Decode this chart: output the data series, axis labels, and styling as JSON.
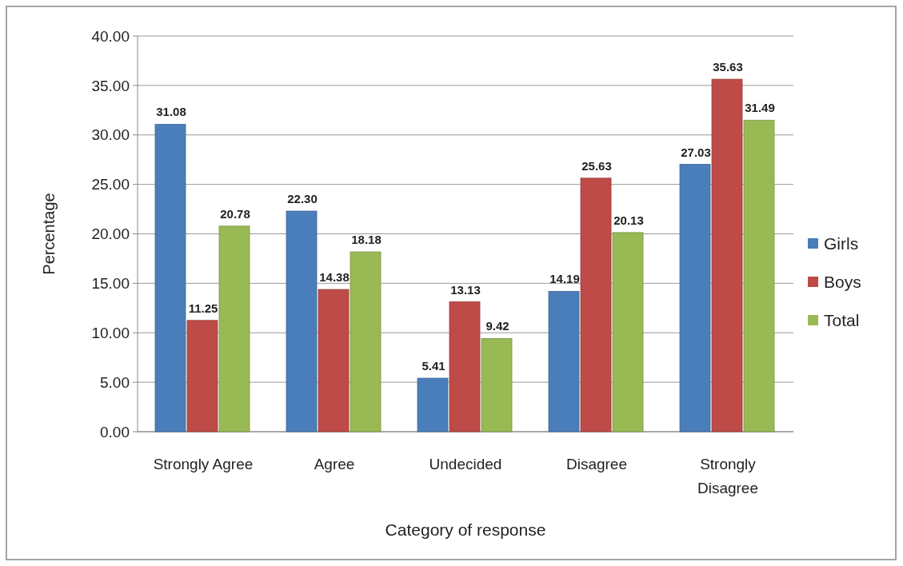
{
  "chart_data": {
    "type": "bar",
    "xlabel": "Category of response",
    "ylabel": "Percentage",
    "categories": [
      "Strongly Agree",
      "Agree",
      "Undecided",
      "Disagree",
      "Strongly Disagree"
    ],
    "series": [
      {
        "name": "Girls",
        "color": "#4a7ebb",
        "values": [
          31.08,
          22.3,
          5.41,
          14.19,
          27.03
        ],
        "value_labels": [
          "31.08",
          "22.30",
          "5.41",
          "14.19",
          "27.03"
        ]
      },
      {
        "name": "Boys",
        "color": "#be4b48",
        "values": [
          11.25,
          14.38,
          13.13,
          25.63,
          35.63
        ],
        "value_labels": [
          "11.25",
          "14.38",
          "13.13",
          "25.63",
          "35.63"
        ]
      },
      {
        "name": "Total",
        "color": "#98b954",
        "values": [
          20.78,
          18.18,
          9.42,
          20.13,
          31.49
        ],
        "value_labels": [
          "20.78",
          "18.18",
          "9.42",
          "20.13",
          "31.49"
        ]
      }
    ],
    "ylim": [
      0,
      40
    ],
    "yticks": [
      {
        "value": 0,
        "label": "0.00"
      },
      {
        "value": 5,
        "label": "5.00"
      },
      {
        "value": 10,
        "label": "10.00"
      },
      {
        "value": 15,
        "label": "15.00"
      },
      {
        "value": 20,
        "label": "20.00"
      },
      {
        "value": 25,
        "label": "25.00"
      },
      {
        "value": 30,
        "label": "30.00"
      },
      {
        "value": 35,
        "label": "35.00"
      },
      {
        "value": 40,
        "label": "40.00"
      }
    ],
    "grid": "y",
    "legend": "right"
  }
}
